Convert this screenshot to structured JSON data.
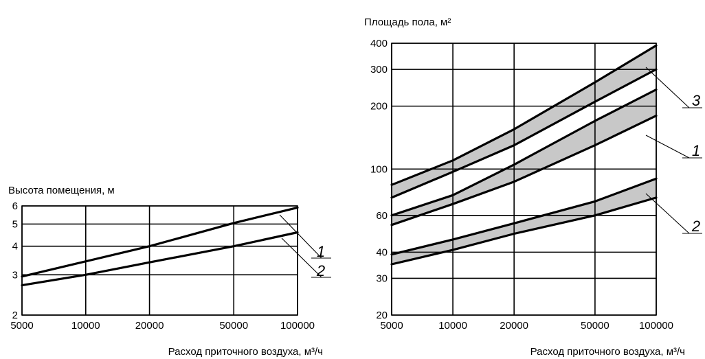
{
  "chart_data": [
    {
      "type": "line",
      "ylabel": "Высота помещения, м",
      "xlabel": "Расход приточного воздуха, м³/ч",
      "x_scale": "log",
      "y_scale": "log",
      "xlim": [
        5000,
        100000
      ],
      "ylim": [
        2,
        6
      ],
      "x_ticks": [
        5000,
        10000,
        20000,
        50000,
        100000
      ],
      "x_tick_labels": [
        "5000",
        "10000",
        "20000",
        "50000",
        "100000"
      ],
      "y_ticks": [
        2,
        3,
        4,
        5,
        6
      ],
      "y_tick_labels": [
        "2",
        "3",
        "4",
        "5",
        "6"
      ],
      "grid": true,
      "series": [
        {
          "name": "1",
          "x": [
            5000,
            20000,
            50000,
            100000
          ],
          "y": [
            2.95,
            4.0,
            5.05,
            5.9
          ]
        },
        {
          "name": "2",
          "x": [
            5000,
            10000,
            20000,
            50000,
            100000
          ],
          "y": [
            2.7,
            3.0,
            3.4,
            4.0,
            4.6
          ]
        }
      ]
    },
    {
      "type": "area",
      "ylabel": "Площадь пола, м²",
      "xlabel": "Расход приточного воздуха, м³/ч",
      "x_scale": "log",
      "y_scale": "log",
      "xlim": [
        5000,
        100000
      ],
      "ylim": [
        20,
        400
      ],
      "x_ticks": [
        5000,
        10000,
        20000,
        50000,
        100000
      ],
      "x_tick_labels": [
        "5000",
        "10000",
        "20000",
        "50000",
        "100000"
      ],
      "y_ticks": [
        20,
        30,
        40,
        60,
        100,
        200,
        300,
        400
      ],
      "y_tick_labels": [
        "20",
        "30",
        "40",
        "60",
        "100",
        "200",
        "300",
        "400"
      ],
      "grid": true,
      "series": [
        {
          "name": "3",
          "x": [
            5000,
            10000,
            20000,
            50000,
            100000
          ],
          "upper": [
            84,
            110,
            155,
            260,
            390
          ],
          "lower": [
            73,
            97,
            130,
            210,
            300
          ]
        },
        {
          "name": "1",
          "x": [
            5000,
            10000,
            20000,
            50000,
            100000
          ],
          "upper": [
            60,
            75,
            105,
            170,
            240
          ],
          "lower": [
            54,
            68,
            87,
            130,
            180
          ]
        },
        {
          "name": "2",
          "x": [
            5000,
            10000,
            20000,
            50000,
            100000
          ],
          "upper": [
            39,
            46,
            55,
            70,
            90
          ],
          "lower": [
            35,
            41,
            49,
            60,
            73
          ]
        }
      ]
    }
  ]
}
